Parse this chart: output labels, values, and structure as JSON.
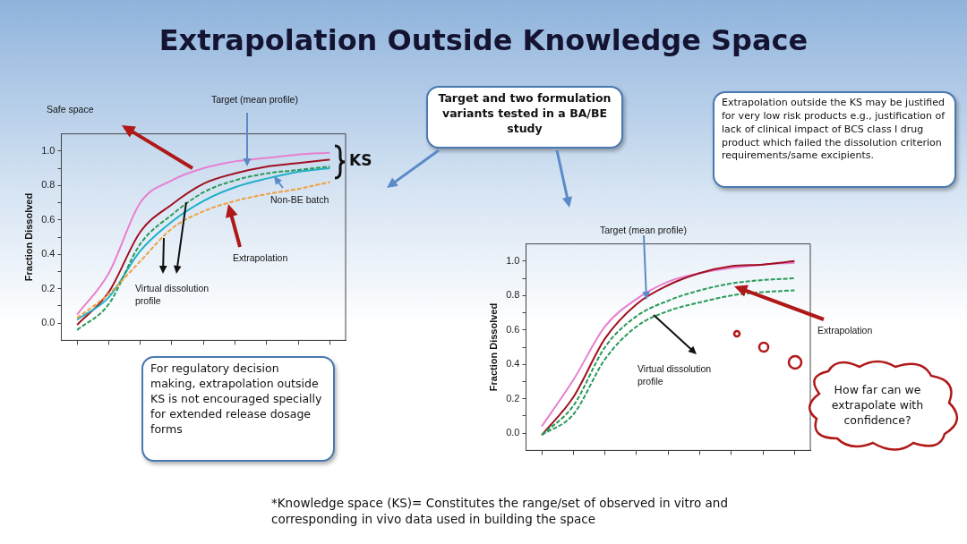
{
  "chart_data": [
    {
      "type": "line",
      "ylabel": "Fraction Dissolved",
      "categories": [
        null,
        null,
        null,
        null,
        null,
        null,
        null,
        null,
        null
      ],
      "series": [
        {
          "color": "#e87fd0",
          "values": [
            0.05,
            0.29,
            0.7,
            0.83,
            0.9,
            0.94,
            0.96,
            0.98,
            0.99
          ]
        },
        {
          "color": "#a01020",
          "values": [
            -0.01,
            0.18,
            0.53,
            0.69,
            0.81,
            0.87,
            0.91,
            0.93,
            0.95
          ]
        },
        {
          "color": "#20b0c8",
          "values": [
            0.02,
            0.15,
            0.42,
            0.59,
            0.71,
            0.79,
            0.84,
            0.88,
            0.9
          ]
        },
        {
          "color": "#2a9a5a",
          "line_style": "dashed",
          "values": [
            -0.04,
            0.11,
            0.46,
            0.63,
            0.76,
            0.83,
            0.87,
            0.89,
            0.91
          ]
        },
        {
          "color": "#f0a040",
          "line_style": "dashed",
          "values": [
            0.03,
            0.17,
            0.36,
            0.55,
            0.65,
            0.71,
            0.75,
            0.78,
            0.82
          ]
        }
      ],
      "ylim": [
        -0.1,
        1.1
      ],
      "yticks": [
        {
          "value": 0,
          "label": "0.0"
        },
        {
          "value": 0.1,
          "label": null
        },
        {
          "value": 0.2,
          "label": "0.2"
        },
        {
          "value": 0.3,
          "label": null
        },
        {
          "value": 0.4,
          "label": "0.4"
        },
        {
          "value": 0.5,
          "label": null
        },
        {
          "value": 0.6,
          "label": "0.6"
        },
        {
          "value": 0.7,
          "label": null
        },
        {
          "value": 0.8,
          "label": "0.8"
        },
        {
          "value": 0.9,
          "label": null
        },
        {
          "value": 1,
          "label": "1.0"
        }
      ],
      "tick_labels": "y",
      "grid": false,
      "legend": false,
      "annotations": [
        "Safe space",
        "Target (mean profile)",
        "KS",
        "Non-BE batch",
        "Extrapolation",
        "Virtual dissolution profile",
        "For  regulatory decision making, extrapolation outside KS is not encouraged specially for extended release dosage forms"
      ]
    },
    {
      "type": "line",
      "ylabel": "Fraction Dissolved",
      "categories": [
        null,
        null,
        null,
        null,
        null,
        null,
        null,
        null,
        null
      ],
      "series": [
        {
          "color": "#e87fd0",
          "values": [
            0.04,
            0.31,
            0.62,
            0.78,
            0.88,
            0.93,
            0.96,
            0.98,
            0.99
          ]
        },
        {
          "color": "#a01020",
          "values": [
            -0.01,
            0.21,
            0.55,
            0.75,
            0.86,
            0.93,
            0.97,
            0.98,
            1.0
          ]
        },
        {
          "color": "#2a9a5a",
          "line_style": "dashed",
          "values": [
            -0.01,
            0.16,
            0.5,
            0.68,
            0.77,
            0.83,
            0.87,
            0.89,
            0.9
          ]
        },
        {
          "color": "#2a9a5a",
          "line_style": "dashed",
          "values": [
            -0.01,
            0.11,
            0.43,
            0.62,
            0.71,
            0.76,
            0.8,
            0.82,
            0.83
          ]
        }
      ],
      "ylim": [
        -0.1,
        1.1
      ],
      "yticks": [
        {
          "value": 0,
          "label": "0.0"
        },
        {
          "value": 0.1,
          "label": null
        },
        {
          "value": 0.2,
          "label": "0.2"
        },
        {
          "value": 0.3,
          "label": null
        },
        {
          "value": 0.4,
          "label": "0.4"
        },
        {
          "value": 0.5,
          "label": null
        },
        {
          "value": 0.6,
          "label": "0.6"
        },
        {
          "value": 0.7,
          "label": null
        },
        {
          "value": 0.8,
          "label": "0.8"
        },
        {
          "value": 0.9,
          "label": null
        },
        {
          "value": 1,
          "label": "1.0"
        }
      ],
      "tick_labels": "y",
      "grid": false,
      "legend": false,
      "annotations": [
        "Target (mean profile)",
        "Extrapolation",
        "Virtual dissolution profile",
        "How far can we extrapolate with confidence?"
      ]
    },
    {
      "type": "other",
      "title": "Extrapolation Outside Knowledge Space",
      "annotations": [
        "Target and  two formulation variants tested in a BA/BE study",
        "Extrapolation outside the KS may be justified for very low risk products e.g., justification of lack of clinical impact of  BCS class I drug product which failed the dissolution criterion requirements/same excipients.",
        "*Knowledge space (KS)= Constitutes the range/set of observed in vitro and corresponding  in vivo data used in building the space"
      ]
    }
  ]
}
